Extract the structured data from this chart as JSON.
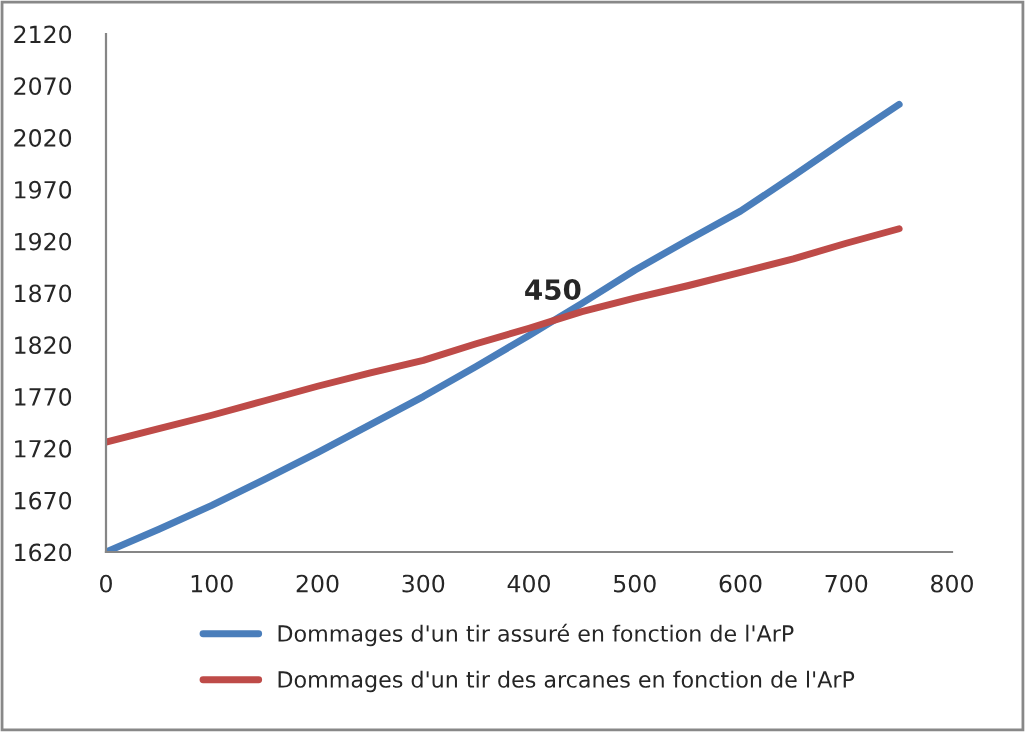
{
  "chart_data": {
    "type": "line",
    "x": [
      0,
      50,
      100,
      150,
      200,
      250,
      300,
      350,
      400,
      450,
      500,
      550,
      600,
      650,
      700,
      750
    ],
    "series": [
      {
        "name": "Dommages d'un tir assuré en fonction de l'ArP",
        "color": "#4a7ebb",
        "values": [
          1620,
          1642,
          1665,
          1690,
          1716,
          1743,
          1770,
          1799,
          1829,
          1860,
          1892,
          1921,
          1949,
          1983,
          2018,
          2052
        ]
      },
      {
        "name": "Dommages d'un tir des arcanes en fonction de l'ArP",
        "color": "#be4b48",
        "values": [
          1726,
          1739,
          1752,
          1766,
          1780,
          1793,
          1805,
          1821,
          1836,
          1852,
          1865,
          1877,
          1890,
          1903,
          1918,
          1932
        ]
      }
    ],
    "annotations": [
      {
        "text": "450",
        "x": 450,
        "y": 1858
      }
    ],
    "xlim": [
      0,
      800
    ],
    "xticks": [
      0,
      100,
      200,
      300,
      400,
      500,
      600,
      700,
      800
    ],
    "ylim": [
      1620,
      2120
    ],
    "yticks": [
      1620,
      1670,
      1720,
      1770,
      1820,
      1870,
      1920,
      1970,
      2020,
      2070,
      2120
    ],
    "grid": false,
    "legend": "bottom",
    "marker": "none",
    "line_style": "solid"
  }
}
